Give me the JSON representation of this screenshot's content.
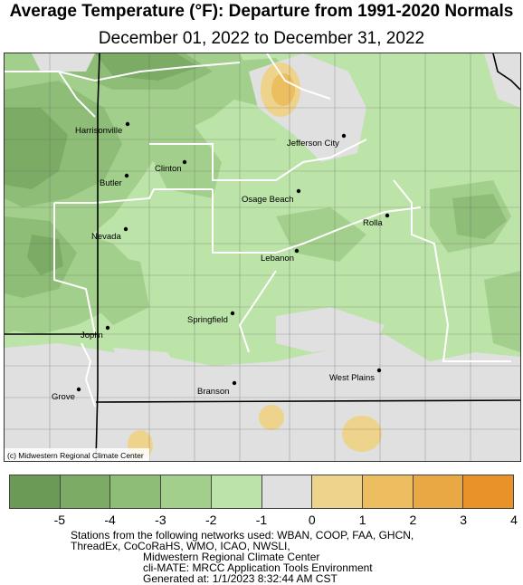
{
  "title": "Average Temperature (°F): Departure from 1991-2020 Normals",
  "subtitle": "December 01, 2022 to December 31, 2022",
  "credit": "(c) Midwestern Regional Climate Center",
  "cities": [
    {
      "name": "Harrisonville"
    },
    {
      "name": "Clinton"
    },
    {
      "name": "Jefferson City"
    },
    {
      "name": "Butler"
    },
    {
      "name": "Osage Beach"
    },
    {
      "name": "Rolla"
    },
    {
      "name": "Nevada"
    },
    {
      "name": "Lebanon"
    },
    {
      "name": "Springfield"
    },
    {
      "name": "Joplin"
    },
    {
      "name": "West Plains"
    },
    {
      "name": "Branson"
    },
    {
      "name": "Grove"
    }
  ],
  "legend": {
    "colors": [
      "#6a9a55",
      "#7bab65",
      "#8dbd77",
      "#a3cf8c",
      "#bce3a8",
      "#e0e0e0",
      "#eed38c",
      "#ecbe5f",
      "#eaa845",
      "#e9922a"
    ],
    "ticks": [
      "-5",
      "-4",
      "-3",
      "-2",
      "-1",
      "0",
      "1",
      "2",
      "3",
      "4"
    ]
  },
  "footer": {
    "line1": "Stations from the following networks used: WBAN, COOP, FAA, GHCN,",
    "line2": "ThreadEx, CoCoRaHS, WMO, ICAO, NWSLI,",
    "line3": "Midwestern Regional Climate Center",
    "line4": "cli-MATE: MRCC Application Tools Environment",
    "line5": "Generated at: 1/1/2023 8:32:44 AM CST"
  }
}
